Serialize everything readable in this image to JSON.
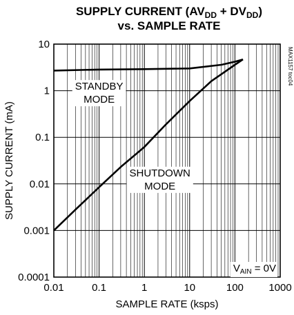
{
  "chart_data": {
    "type": "line",
    "title_line1": {
      "parts": [
        {
          "text": "SUPPLY CURRENT (AV",
          "sub": false
        },
        {
          "text": "DD",
          "sub": true
        },
        {
          "text": " + DV",
          "sub": false
        },
        {
          "text": "DD",
          "sub": true
        },
        {
          "text": ")",
          "sub": false
        }
      ]
    },
    "title_line2": "vs. SAMPLE RATE",
    "xlabel": "SAMPLE RATE (ksps)",
    "ylabel": "SUPPLY CURRENT (mA)",
    "x_scale": "log",
    "y_scale": "log",
    "xlim": [
      0.01,
      1000
    ],
    "ylim": [
      0.0001,
      10
    ],
    "x_ticks": [
      {
        "value": 0.01,
        "label": "0.01"
      },
      {
        "value": 0.1,
        "label": "0.1"
      },
      {
        "value": 1,
        "label": "1"
      },
      {
        "value": 10,
        "label": "10"
      },
      {
        "value": 100,
        "label": "100"
      },
      {
        "value": 1000,
        "label": "1000"
      }
    ],
    "y_ticks": [
      {
        "value": 10,
        "label": "10"
      },
      {
        "value": 1,
        "label": "1"
      },
      {
        "value": 0.1,
        "label": "0.1"
      },
      {
        "value": 0.01,
        "label": "0.01"
      },
      {
        "value": 0.001,
        "label": "0.001"
      },
      {
        "value": 0.0001,
        "label": "0.0001"
      }
    ],
    "grid": true,
    "series": [
      {
        "key": "standby",
        "label_lines": [
          "STANDBY",
          "MODE"
        ],
        "label_at": {
          "x": 0.1,
          "y": 1.05
        },
        "points": [
          [
            0.01,
            2.7
          ],
          [
            0.1,
            2.85
          ],
          [
            1,
            2.9
          ],
          [
            10,
            3.0
          ],
          [
            50,
            3.6
          ],
          [
            100,
            4.2
          ],
          [
            150,
            4.7
          ]
        ]
      },
      {
        "key": "shutdown",
        "label_lines": [
          "SHUTDOWN",
          "MODE"
        ],
        "label_at": {
          "x": 2.2,
          "y": 0.0145
        },
        "points": [
          [
            0.01,
            0.001
          ],
          [
            0.03,
            0.0028
          ],
          [
            0.1,
            0.0085
          ],
          [
            0.3,
            0.023
          ],
          [
            1,
            0.062
          ],
          [
            3,
            0.19
          ],
          [
            10,
            0.6
          ],
          [
            30,
            1.6
          ],
          [
            100,
            3.6
          ],
          [
            150,
            4.7
          ]
        ]
      }
    ],
    "annotation": {
      "prefix": "V",
      "sub": "AIN",
      "suffix": " = 0V",
      "position": "bottom-right"
    },
    "side_code": "MAX1157 toc04"
  }
}
